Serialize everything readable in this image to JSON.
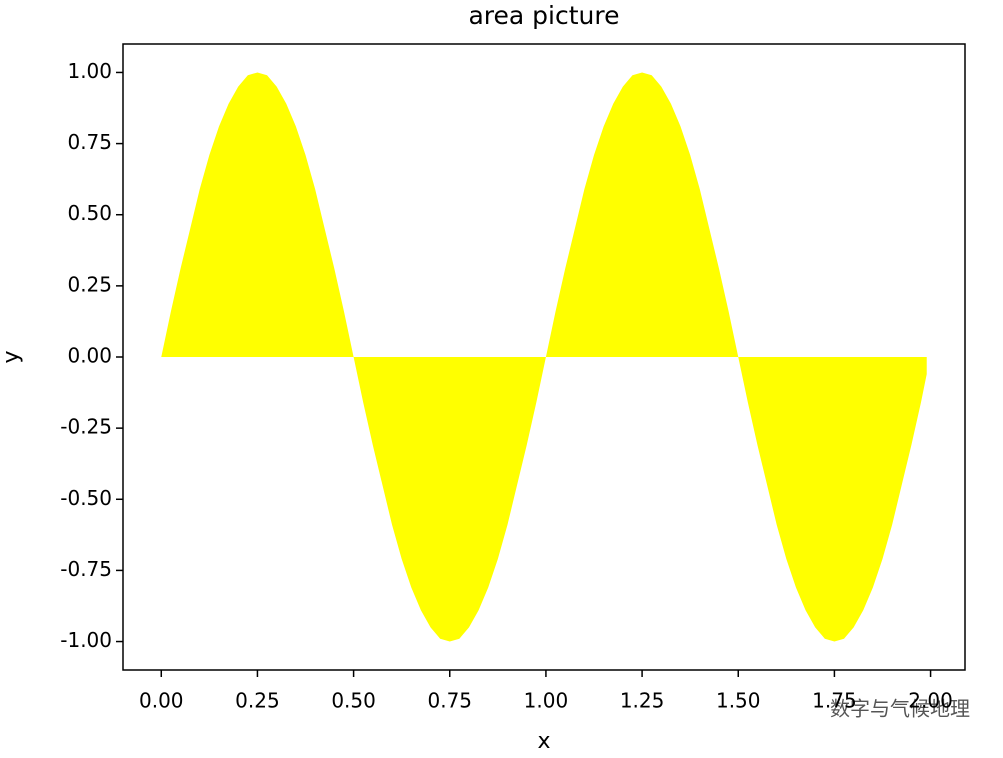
{
  "chart_data": {
    "type": "area",
    "title": "area picture",
    "xlabel": "x",
    "ylabel": "y",
    "x": [
      0,
      0.025,
      0.05,
      0.075,
      0.1,
      0.125,
      0.15,
      0.175,
      0.2,
      0.225,
      0.25,
      0.275,
      0.3,
      0.325,
      0.35,
      0.375,
      0.4,
      0.425,
      0.45,
      0.475,
      0.5,
      0.525,
      0.55,
      0.575,
      0.6,
      0.625,
      0.65,
      0.675,
      0.7,
      0.725,
      0.75,
      0.775,
      0.8,
      0.825,
      0.85,
      0.875,
      0.9,
      0.925,
      0.95,
      0.975,
      1,
      1.025,
      1.05,
      1.075,
      1.1,
      1.125,
      1.15,
      1.175,
      1.2,
      1.225,
      1.25,
      1.275,
      1.3,
      1.325,
      1.35,
      1.375,
      1.4,
      1.425,
      1.45,
      1.475,
      1.5,
      1.525,
      1.55,
      1.575,
      1.6,
      1.625,
      1.65,
      1.675,
      1.7,
      1.725,
      1.75,
      1.775,
      1.8,
      1.825,
      1.85,
      1.875,
      1.9,
      1.925,
      1.95,
      1.975,
      1.99
    ],
    "values": [
      0,
      0.16,
      0.31,
      0.45,
      0.59,
      0.71,
      0.81,
      0.89,
      0.95,
      0.99,
      1,
      0.99,
      0.95,
      0.89,
      0.81,
      0.71,
      0.59,
      0.45,
      0.31,
      0.16,
      0,
      -0.16,
      -0.31,
      -0.45,
      -0.59,
      -0.71,
      -0.81,
      -0.89,
      -0.95,
      -0.99,
      -1,
      -0.99,
      -0.95,
      -0.89,
      -0.81,
      -0.71,
      -0.59,
      -0.45,
      -0.31,
      -0.16,
      0,
      0.16,
      0.31,
      0.45,
      0.59,
      0.71,
      0.81,
      0.89,
      0.95,
      0.99,
      1,
      0.99,
      0.95,
      0.89,
      0.81,
      0.71,
      0.59,
      0.45,
      0.31,
      0.16,
      0,
      -0.16,
      -0.31,
      -0.45,
      -0.59,
      -0.71,
      -0.81,
      -0.89,
      -0.95,
      -0.99,
      -1,
      -0.99,
      -0.95,
      -0.89,
      -0.81,
      -0.71,
      -0.59,
      -0.45,
      -0.31,
      -0.16,
      -0.06
    ],
    "color": "#ffff00",
    "xlim": [
      -0.0995,
      2.0895
    ],
    "xticks": [
      {
        "value": 0,
        "label": "0.00"
      },
      0.25,
      {
        "value": 0.5,
        "label": "0.50"
      },
      0.75,
      {
        "value": 1,
        "label": "1.00"
      },
      1.25,
      {
        "value": 1.5,
        "label": "1.50"
      },
      1.75,
      {
        "value": 2,
        "label": "2.00"
      }
    ],
    "ylim": [
      -1.1,
      1.1
    ],
    "yticks": [
      {
        "value": -1,
        "label": "-1.00"
      },
      -0.75,
      {
        "value": -0.5,
        "label": "-0.50"
      },
      -0.25,
      {
        "value": 0,
        "label": "0.00"
      },
      0.25,
      {
        "value": 0.5,
        "label": "0.50"
      },
      0.75,
      {
        "value": 1,
        "label": "1.00"
      }
    ],
    "watermark": "数字与气候地理"
  }
}
